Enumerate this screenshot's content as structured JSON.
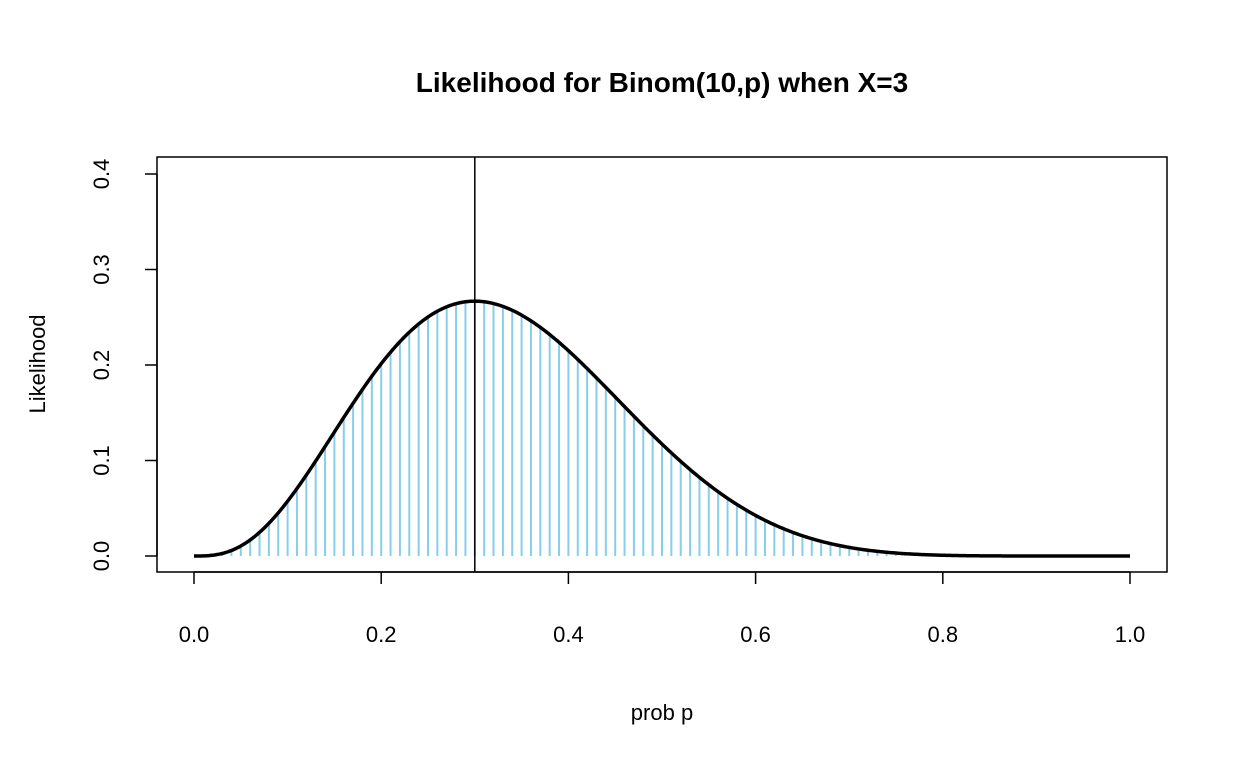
{
  "chart_data": {
    "type": "line",
    "title": "Likelihood for Binom(10,p) when X=3",
    "xlabel": "prob p",
    "ylabel": "Likelihood",
    "xlim": [
      0,
      1
    ],
    "ylim": [
      0,
      0.4
    ],
    "x_ticks": [
      "0.0",
      "0.2",
      "0.4",
      "0.6",
      "0.8",
      "1.0"
    ],
    "x_tick_values": [
      0,
      0.2,
      0.4,
      0.6,
      0.8,
      1.0
    ],
    "y_ticks": [
      "0.0",
      "0.1",
      "0.2",
      "0.3",
      "0.4"
    ],
    "y_tick_values": [
      0,
      0.1,
      0.2,
      0.3,
      0.4
    ],
    "model": {
      "distribution": "binomial",
      "n": 10,
      "x": 3
    },
    "p_grid": {
      "from": 0,
      "to": 1,
      "step": 0.01
    },
    "mle_vline": 0.3,
    "grid": false,
    "colors": {
      "curve": "#000000",
      "spikes": "#87CEEB",
      "vline": "#000000"
    }
  }
}
